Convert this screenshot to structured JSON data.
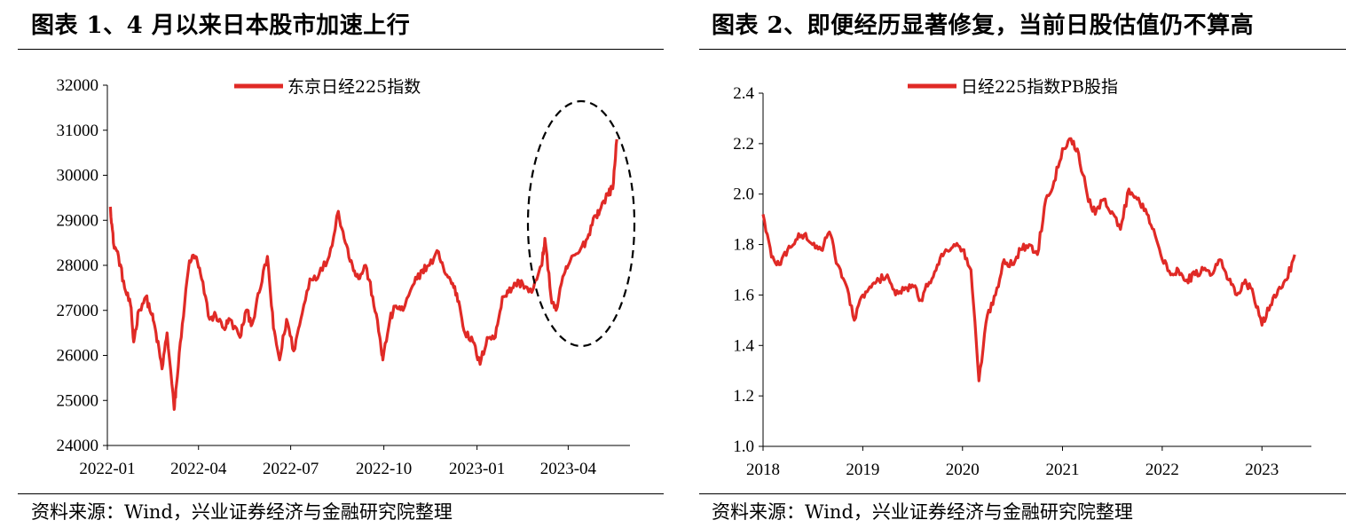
{
  "charts": [
    {
      "title": "图表 1、4 月以来日本股市加速上行",
      "source": "资料来源：Wind，兴业证券经济与金融研究院整理"
    },
    {
      "title": "图表 2、即便经历显著修复，当前日股估值仍不算高",
      "source": "资料来源：Wind，兴业证券经济与金融研究院整理"
    }
  ],
  "colors": {
    "series": "#e02a26",
    "axis": "#000000",
    "annotation": "#000000"
  },
  "chart_data": [
    {
      "type": "line",
      "title": "",
      "xlabel": "",
      "ylabel": "",
      "legend_position": "top-center",
      "grid": false,
      "ylim": [
        24000,
        32000
      ],
      "yticks": [
        24000,
        25000,
        26000,
        27000,
        28000,
        29000,
        30000,
        31000,
        32000
      ],
      "xticks": [
        "2022-01",
        "2022-04",
        "2022-07",
        "2022-10",
        "2023-01",
        "2023-04"
      ],
      "xlim": [
        "2022-01",
        "2023-06"
      ],
      "annotation": "dashed ellipse highlighting Mar–May 2023 rally",
      "series": [
        {
          "name": "东京日经225指数",
          "x": [
            "2022-01-04",
            "2022-01-07",
            "2022-01-12",
            "2022-01-18",
            "2022-01-24",
            "2022-01-27",
            "2022-02-01",
            "2022-02-08",
            "2022-02-14",
            "2022-02-18",
            "2022-02-24",
            "2022-03-01",
            "2022-03-08",
            "2022-03-10",
            "2022-03-16",
            "2022-03-23",
            "2022-03-29",
            "2022-04-04",
            "2022-04-12",
            "2022-04-18",
            "2022-04-26",
            "2022-05-02",
            "2022-05-12",
            "2022-05-18",
            "2022-05-24",
            "2022-05-31",
            "2022-06-08",
            "2022-06-14",
            "2022-06-20",
            "2022-06-27",
            "2022-07-04",
            "2022-07-11",
            "2022-07-20",
            "2022-07-29",
            "2022-08-08",
            "2022-08-17",
            "2022-08-24",
            "2022-08-31",
            "2022-09-06",
            "2022-09-13",
            "2022-09-20",
            "2022-09-27",
            "2022-09-30",
            "2022-10-07",
            "2022-10-13",
            "2022-10-20",
            "2022-10-31",
            "2022-11-08",
            "2022-11-15",
            "2022-11-24",
            "2022-12-01",
            "2022-12-08",
            "2022-12-14",
            "2022-12-20",
            "2022-12-28",
            "2023-01-04",
            "2023-01-11",
            "2023-01-19",
            "2023-01-26",
            "2023-02-01",
            "2023-02-08",
            "2023-02-15",
            "2023-02-24",
            "2023-03-06",
            "2023-03-09",
            "2023-03-15",
            "2023-03-20",
            "2023-03-28",
            "2023-04-03",
            "2023-04-12",
            "2023-04-20",
            "2023-04-27",
            "2023-05-02",
            "2023-05-10",
            "2023-05-15",
            "2023-05-19"
          ],
          "values": [
            29300,
            28500,
            28200,
            27500,
            27100,
            26300,
            27000,
            27300,
            26900,
            26500,
            25700,
            26500,
            24800,
            25300,
            26700,
            28100,
            28200,
            27700,
            26800,
            26900,
            26600,
            26800,
            26400,
            27000,
            26700,
            27400,
            28200,
            26600,
            25900,
            26800,
            26100,
            26800,
            27700,
            27800,
            28200,
            29200,
            28500,
            28000,
            27700,
            28000,
            27300,
            26400,
            25900,
            26800,
            27100,
            27000,
            27600,
            27900,
            28000,
            28300,
            27800,
            27600,
            27200,
            26500,
            26300,
            25800,
            26400,
            26400,
            27300,
            27400,
            27600,
            27600,
            27400,
            28000,
            28600,
            27300,
            27000,
            27800,
            28100,
            28300,
            28600,
            29100,
            29200,
            29600,
            29700,
            30800
          ]
        }
      ]
    },
    {
      "type": "line",
      "title": "",
      "xlabel": "",
      "ylabel": "",
      "legend_position": "top-center",
      "grid": false,
      "ylim": [
        1.0,
        2.4
      ],
      "yticks": [
        1.0,
        1.2,
        1.4,
        1.6,
        1.8,
        2.0,
        2.2,
        2.4
      ],
      "xticks": [
        "2018",
        "2019",
        "2020",
        "2021",
        "2022",
        "2023"
      ],
      "xlim": [
        "2018-01",
        "2023-07"
      ],
      "series": [
        {
          "name": "日经225指数PB股指",
          "x": [
            "2018-01",
            "2018-02",
            "2018-03",
            "2018-04",
            "2018-05",
            "2018-06",
            "2018-07",
            "2018-08",
            "2018-09",
            "2018-10",
            "2018-11",
            "2018-12",
            "2019-01",
            "2019-02",
            "2019-03",
            "2019-04",
            "2019-05",
            "2019-06",
            "2019-07",
            "2019-08",
            "2019-09",
            "2019-10",
            "2019-11",
            "2019-12",
            "2020-01",
            "2020-02",
            "2020-03",
            "2020-04",
            "2020-05",
            "2020-06",
            "2020-07",
            "2020-08",
            "2020-09",
            "2020-10",
            "2020-11",
            "2020-12",
            "2021-01",
            "2021-02",
            "2021-03",
            "2021-04",
            "2021-05",
            "2021-06",
            "2021-07",
            "2021-08",
            "2021-09",
            "2021-10",
            "2021-11",
            "2021-12",
            "2022-01",
            "2022-02",
            "2022-03",
            "2022-04",
            "2022-05",
            "2022-06",
            "2022-07",
            "2022-08",
            "2022-09",
            "2022-10",
            "2022-11",
            "2022-12",
            "2023-01",
            "2023-02",
            "2023-03",
            "2023-04",
            "2023-05"
          ],
          "values": [
            1.92,
            1.75,
            1.72,
            1.78,
            1.82,
            1.84,
            1.8,
            1.78,
            1.85,
            1.72,
            1.64,
            1.5,
            1.6,
            1.63,
            1.66,
            1.68,
            1.6,
            1.62,
            1.64,
            1.58,
            1.65,
            1.72,
            1.78,
            1.8,
            1.78,
            1.7,
            1.26,
            1.52,
            1.6,
            1.74,
            1.72,
            1.78,
            1.8,
            1.76,
            1.98,
            2.05,
            2.18,
            2.22,
            2.16,
            2.0,
            1.92,
            1.98,
            1.93,
            1.86,
            2.02,
            1.98,
            1.94,
            1.86,
            1.74,
            1.68,
            1.7,
            1.66,
            1.68,
            1.7,
            1.68,
            1.74,
            1.66,
            1.6,
            1.66,
            1.6,
            1.48,
            1.56,
            1.62,
            1.66,
            1.76
          ]
        }
      ]
    }
  ]
}
